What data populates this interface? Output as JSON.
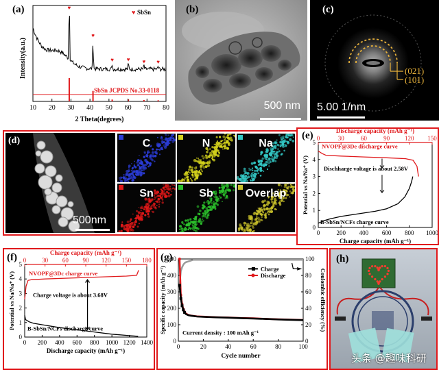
{
  "panel_labels": [
    "(a)",
    "(b)",
    "(c)",
    "(d)",
    "(e)",
    "(f)",
    "(g)",
    "(h)"
  ],
  "panel_a": {
    "ylabel": "Intensity(a.u.)",
    "xlabel": "2 Theta(degrees)",
    "legend": "SbSn",
    "ref_label": "SbSn JCPDS No.33-0118",
    "xticks": [
      "10",
      "20",
      "30",
      "40",
      "50",
      "60",
      "70",
      "80"
    ]
  },
  "panel_b": {
    "scale": "500 nm"
  },
  "panel_c": {
    "ring1": "(021)",
    "ring2": "(101)",
    "scale": "5.00 1/nm"
  },
  "panel_d": {
    "scale": "500nm",
    "maps": [
      {
        "label": "C",
        "color": "#2b3cd6",
        "text_color": "#ffffff"
      },
      {
        "label": "N",
        "color": "#d4d21c",
        "text_color": "#ffffff"
      },
      {
        "label": "Na",
        "color": "#33c7c4",
        "text_color": "#ffffff"
      },
      {
        "label": "Sn",
        "color": "#e01818",
        "text_color": "#ffffff"
      },
      {
        "label": "Sb",
        "color": "#2bbf2b",
        "text_color": "#ffffff"
      },
      {
        "label": "Overlap",
        "color": "#c8c02a",
        "text_color": "#ffffff"
      }
    ]
  },
  "panel_e": {
    "top_label": "Discharge capacity (mAh g⁻¹)",
    "top_ticks": [
      "0",
      "30",
      "60",
      "90",
      "120",
      "150"
    ],
    "xlabel": "Charge capacity (mAh g⁻¹)",
    "x_ticks": [
      "0",
      "200",
      "400",
      "600",
      "800",
      "1000"
    ],
    "ylabel": "Potential vs Na/Na⁺ (V)",
    "y_ticks": [
      "0",
      "1",
      "2",
      "3",
      "4",
      "5"
    ],
    "red_label": "NVOPF@3De discharge curve",
    "mid_label": "Dischharge voltage is about 2.58V",
    "black_label": "B-SbSn/NCFs charge curve"
  },
  "panel_f": {
    "top_label": "Charge capacity (mAh g⁻¹)",
    "top_ticks": [
      "0",
      "30",
      "60",
      "90",
      "120",
      "150",
      "180"
    ],
    "xlabel": "Discharge capacity (mAh g⁻¹)",
    "x_ticks": [
      "0",
      "200",
      "400",
      "600",
      "800",
      "1000",
      "1200",
      "1400"
    ],
    "ylabel": "Potential vs Na/Na⁺ (V)",
    "y_ticks": [
      "0",
      "1",
      "2",
      "3",
      "4",
      "5"
    ],
    "red_label": "NVOPF@3Dc charge curve",
    "mid_label": "Charge voltage is about 3.68V",
    "black_label": "B-SbSn/NCFs discharge curve"
  },
  "panel_g": {
    "xlabel": "Cycle number",
    "ylabel_left": "Specific capacity (mAh g⁻¹)",
    "ylabel_right": "Coulombic efficiency (%)",
    "x_ticks": [
      "0",
      "20",
      "40",
      "60",
      "80",
      "100"
    ],
    "yl_ticks": [
      "0",
      "100",
      "200",
      "300",
      "400",
      "500"
    ],
    "yr_ticks": [
      "0",
      "20",
      "40",
      "60",
      "80",
      "100"
    ],
    "legend": [
      "Charge",
      "Discharge"
    ],
    "note": "Current density : 100 mAh g⁻¹"
  },
  "watermark": "头条 @趣味科研",
  "colors": {
    "red": "#e0191c",
    "frame": "#e0191c",
    "black": "#000000",
    "grey": "#999999"
  },
  "chart_data": [
    {
      "type": "line",
      "id": "xrd",
      "xlabel": "2 Theta(degrees)",
      "ylabel": "Intensity(a.u.)",
      "xlim": [
        10,
        80
      ],
      "ref_peaks_2theta": [
        29.1,
        41.6,
        51.7,
        60.2,
        68.4,
        75.9
      ],
      "ref_peak_rel": [
        1.0,
        0.45,
        0.08,
        0.09,
        0.06,
        0.05
      ],
      "marker_series": "SbSn"
    },
    {
      "type": "line",
      "id": "full_cell_charge",
      "xlim": [
        0,
        1000
      ],
      "ylim": [
        0,
        5
      ],
      "top_xlim": [
        0,
        150
      ],
      "series": [
        {
          "name": "B-SbSn/NCFs charge curve",
          "axis": "bottom",
          "x": [
            0,
            50,
            100,
            200,
            300,
            400,
            500,
            600,
            700,
            760,
            800,
            820,
            830
          ],
          "y": [
            0.25,
            0.4,
            0.5,
            0.65,
            0.75,
            0.85,
            0.95,
            1.1,
            1.4,
            1.8,
            2.3,
            2.7,
            3.0
          ]
        },
        {
          "name": "NVOPF@3De discharge curve",
          "axis": "top",
          "x": [
            0,
            5,
            10,
            30,
            60,
            90,
            115,
            125,
            130,
            132
          ],
          "y": [
            4.5,
            4.35,
            4.25,
            4.2,
            4.15,
            4.1,
            4.05,
            3.95,
            3.6,
            3.0
          ]
        }
      ]
    },
    {
      "type": "line",
      "id": "full_cell_discharge",
      "xlim": [
        0,
        1400
      ],
      "ylim": [
        0,
        5
      ],
      "top_xlim": [
        0,
        180
      ],
      "series": [
        {
          "name": "B-SbSn/NCFs discharge curve",
          "axis": "bottom",
          "x": [
            0,
            10,
            50,
            100,
            200,
            400,
            600,
            800,
            1000,
            1200,
            1300
          ],
          "y": [
            1.5,
            1.2,
            1.05,
            0.95,
            0.85,
            0.65,
            0.5,
            0.35,
            0.2,
            0.1,
            0.05
          ]
        },
        {
          "name": "NVOPF@3Dc charge curve",
          "axis": "top",
          "x": [
            0,
            2,
            5,
            10,
            30,
            60,
            90,
            120,
            150,
            165,
            168
          ],
          "y": [
            2.6,
            3.5,
            3.9,
            3.95,
            4.0,
            4.05,
            4.1,
            4.15,
            4.2,
            4.25,
            4.6
          ]
        }
      ]
    },
    {
      "type": "line",
      "id": "cycling",
      "xlim": [
        0,
        100
      ],
      "ylim": [
        0,
        500
      ],
      "y2lim": [
        0,
        100
      ],
      "series": [
        {
          "name": "Charge",
          "marker": "square",
          "x": [
            1,
            2,
            3,
            4,
            5,
            6,
            8,
            10,
            15,
            20,
            30,
            40,
            50,
            60,
            70,
            80,
            90,
            100
          ],
          "y": [
            340,
            260,
            215,
            190,
            175,
            165,
            158,
            155,
            150,
            148,
            145,
            143,
            140,
            138,
            135,
            132,
            130,
            128
          ]
        },
        {
          "name": "Discharge",
          "marker": "circle",
          "x": [
            1,
            2,
            3,
            4,
            5,
            6,
            8,
            10,
            15,
            20,
            30,
            40,
            50,
            60,
            70,
            80,
            90,
            100
          ],
          "y": [
            500,
            280,
            225,
            195,
            178,
            168,
            160,
            156,
            151,
            149,
            146,
            144,
            141,
            139,
            136,
            133,
            131,
            129
          ]
        },
        {
          "name": "Coulombic efficiency",
          "axis": "right",
          "marker": "square",
          "x": [
            1,
            2,
            3,
            4,
            5,
            6,
            8,
            10,
            12,
            15,
            20,
            30,
            50,
            70,
            100
          ],
          "y": [
            68,
            85,
            90,
            93,
            95,
            96,
            97,
            98,
            99,
            99,
            99,
            99,
            99,
            99,
            99
          ]
        }
      ]
    }
  ]
}
